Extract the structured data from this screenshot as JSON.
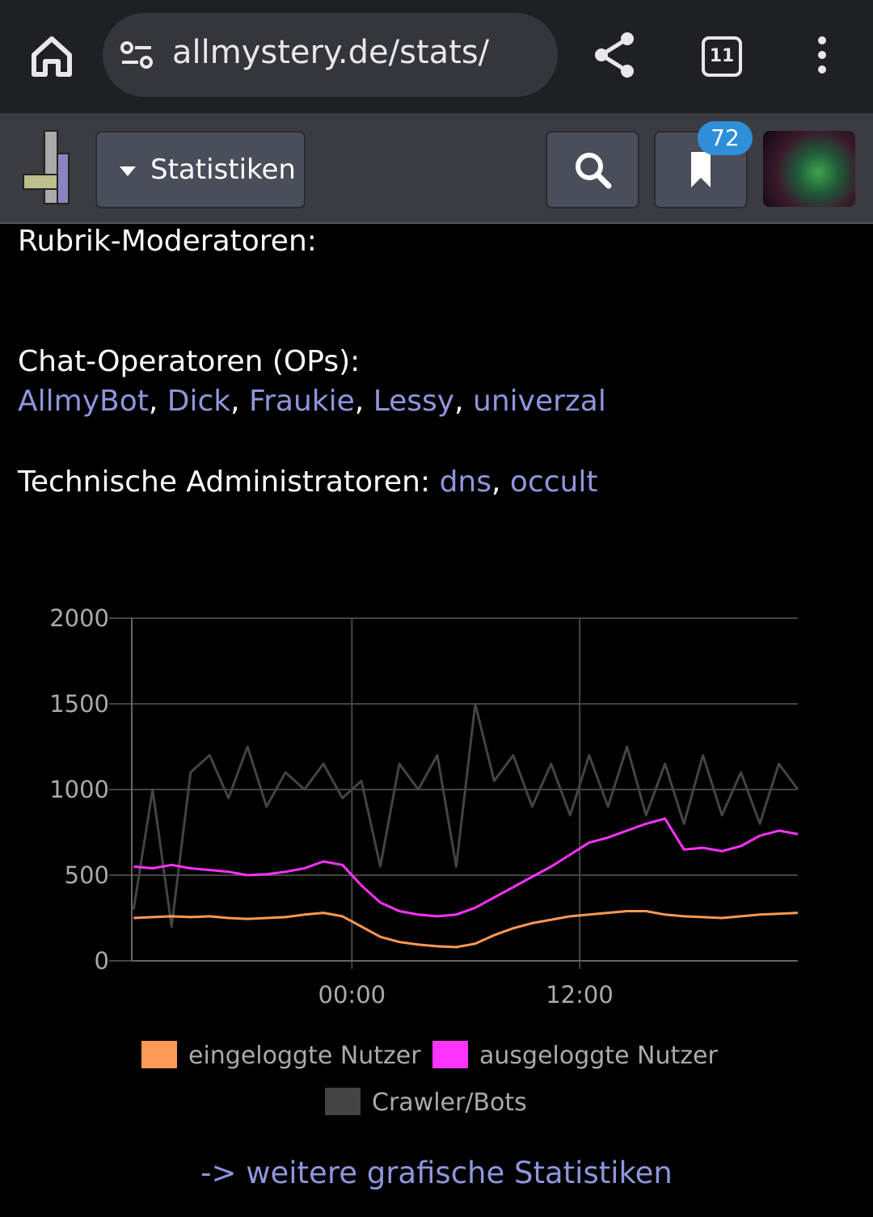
{
  "browser": {
    "url": "allmystery.de/stats/",
    "tab_count": "11"
  },
  "header": {
    "menu": "Statistiken",
    "badge": "72"
  },
  "content": {
    "rubrik_label": "Rubrik-Moderatoren:",
    "chat_label": "Chat-Operatoren (OPs):",
    "chat_ops": [
      "AllmyBot",
      "Dick",
      "Fraukie",
      "Lessy",
      "univerzal"
    ],
    "separator": ",",
    "tech_label": "Technische Administratoren:",
    "tech_admins": [
      "dns",
      "occult"
    ]
  },
  "chart_data": {
    "type": "line",
    "x": [
      -11.5,
      -10.5,
      -9.5,
      -8.5,
      -7.5,
      -6.5,
      -5.5,
      -4.5,
      -3.5,
      -2.5,
      -1.5,
      -0.5,
      0.5,
      1.5,
      2.5,
      3.5,
      4.5,
      5.5,
      6.5,
      7.5,
      8.5,
      9.5,
      10.5,
      11.5,
      12.5,
      13.5,
      14.5,
      15.5,
      16.5,
      17.5,
      18.5,
      19.5,
      20.5,
      21.5,
      22.5,
      23.5
    ],
    "xlim": [
      -11.6,
      23.5
    ],
    "xticks": [
      {
        "value": 0,
        "label": "00:00"
      },
      {
        "value": 12,
        "label": "12:00"
      }
    ],
    "ylim": [
      0,
      2000
    ],
    "yticks": [
      0,
      500,
      1000,
      1500,
      2000
    ],
    "grid": true,
    "series": [
      {
        "name": "eingeloggte Nutzer",
        "color": "#ff9955",
        "values": [
          250,
          255,
          260,
          255,
          260,
          250,
          245,
          250,
          255,
          270,
          280,
          260,
          200,
          140,
          110,
          95,
          85,
          80,
          100,
          150,
          190,
          220,
          240,
          260,
          270,
          280,
          290,
          290,
          270,
          260,
          255,
          250,
          260,
          270,
          275,
          280
        ]
      },
      {
        "name": "ausgeloggte Nutzer",
        "color": "#ff33ff",
        "values": [
          550,
          540,
          560,
          540,
          530,
          520,
          500,
          505,
          520,
          540,
          580,
          560,
          440,
          340,
          290,
          270,
          260,
          270,
          310,
          370,
          430,
          490,
          550,
          620,
          690,
          720,
          760,
          800,
          830,
          650,
          660,
          640,
          670,
          730,
          760,
          740
        ]
      },
      {
        "name": "Crawler/Bots",
        "color": "#444444",
        "values": [
          300,
          1000,
          200,
          1100,
          1200,
          950,
          1250,
          900,
          1100,
          1000,
          1150,
          950,
          1050,
          550,
          1150,
          1000,
          1200,
          550,
          1500,
          1050,
          1200,
          900,
          1150,
          850,
          1200,
          900,
          1250,
          850,
          1150,
          800,
          1200,
          850,
          1100,
          800,
          1150,
          1000
        ]
      }
    ]
  },
  "footer_link": "-> weitere grafische Statistiken"
}
